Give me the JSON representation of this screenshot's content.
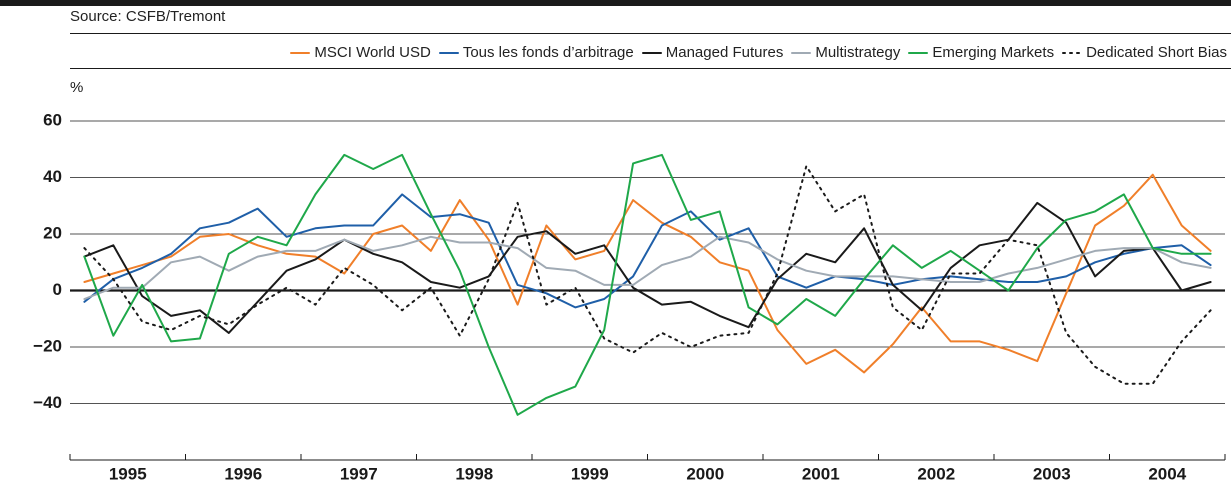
{
  "source": "Source: CSFB/Tremont",
  "chart_data": {
    "type": "line",
    "y_unit": "%",
    "categories": [
      "1995",
      "1996",
      "1997",
      "1998",
      "1999",
      "2000",
      "2001",
      "2002",
      "2003",
      "2004"
    ],
    "xlim": [
      1995,
      2005
    ],
    "xticks": [
      1995,
      1996,
      1997,
      1998,
      1999,
      2000,
      2001,
      2002,
      2003,
      2004,
      2005
    ],
    "ylim": [
      -60,
      60
    ],
    "yticks": [
      60,
      40,
      20,
      0,
      {
        "value": -20,
        "label": "−20"
      },
      {
        "value": -40,
        "label": "−40"
      }
    ],
    "grid": true,
    "x": [
      1995.125,
      1995.375,
      1995.625,
      1995.875,
      1996.125,
      1996.375,
      1996.625,
      1996.875,
      1997.125,
      1997.375,
      1997.625,
      1997.875,
      1998.125,
      1998.375,
      1998.625,
      1998.875,
      1999.125,
      1999.375,
      1999.625,
      1999.875,
      2000.125,
      2000.375,
      2000.625,
      2000.875,
      2001.125,
      2001.375,
      2001.625,
      2001.875,
      2002.125,
      2002.375,
      2002.625,
      2002.875,
      2003.125,
      2003.375,
      2003.625,
      2003.875,
      2004.125,
      2004.375,
      2004.625,
      2004.875
    ],
    "series": [
      {
        "name": "MSCI World USD",
        "color": "#f07f2a",
        "style": "solid",
        "values": [
          3,
          6,
          9,
          12,
          19,
          20,
          16,
          13,
          12,
          6,
          20,
          23,
          14,
          32,
          18,
          -5,
          23,
          11,
          14,
          32,
          24,
          19,
          10,
          7,
          -14,
          -26,
          -21,
          -29,
          -19,
          -6,
          -18,
          -18,
          -21,
          -25,
          -1,
          23,
          30,
          41,
          23,
          14
        ]
      },
      {
        "name": "Tous les fonds d’arbitrage",
        "color": "#1f5fa8",
        "style": "solid",
        "values": [
          -4,
          4,
          8,
          13,
          22,
          24,
          29,
          19,
          22,
          23,
          23,
          34,
          26,
          27,
          24,
          2,
          -1,
          -6,
          -3,
          5,
          23,
          28,
          18,
          22,
          5,
          1,
          5,
          4,
          2,
          4,
          5,
          4,
          3,
          3,
          5,
          10,
          13,
          15,
          16,
          9
        ]
      },
      {
        "name": "Managed Futures",
        "color": "#1a1a1a",
        "style": "solid",
        "values": [
          12,
          16,
          -2,
          -9,
          -7,
          -15,
          -4,
          7,
          11,
          18,
          13,
          10,
          3,
          1,
          5,
          19,
          21,
          13,
          16,
          1,
          -5,
          -4,
          -9,
          -13,
          4,
          13,
          10,
          22,
          2,
          -7,
          8,
          16,
          18,
          31,
          24,
          5,
          14,
          15,
          0,
          3
        ]
      },
      {
        "name": "Multistrategy",
        "color": "#a0aab4",
        "style": "solid",
        "values": [
          -3,
          1,
          1,
          10,
          12,
          7,
          12,
          14,
          14,
          18,
          14,
          16,
          19,
          17,
          17,
          15,
          8,
          7,
          2,
          2,
          9,
          12,
          19,
          17,
          11,
          7,
          5,
          5,
          5,
          4,
          3,
          3,
          6,
          8,
          11,
          14,
          15,
          15,
          10,
          8
        ]
      },
      {
        "name": "Emerging Markets",
        "color": "#1fa84a",
        "style": "solid",
        "values": [
          12,
          -16,
          2,
          -18,
          -17,
          13,
          19,
          16,
          34,
          48,
          43,
          48,
          27,
          7,
          -20,
          -44,
          -38,
          -34,
          -14,
          45,
          48,
          25,
          28,
          -6,
          -12,
          -3,
          -9,
          4,
          16,
          8,
          14,
          7,
          0,
          15,
          25,
          28,
          34,
          15,
          13,
          13
        ]
      },
      {
        "name": "Dedicated Short Bias",
        "color": "#1a1a1a",
        "style": "dotted",
        "values": [
          15,
          4,
          -11,
          -14,
          -9,
          -12,
          -5,
          1,
          -5,
          8,
          2,
          -7,
          1,
          -16,
          4,
          31,
          -5,
          1,
          -17,
          -22,
          -15,
          -20,
          -16,
          -15,
          6,
          44,
          28,
          34,
          -6,
          -14,
          6,
          6,
          18,
          16,
          -15,
          -27,
          -33,
          -33,
          -18,
          -7
        ]
      }
    ]
  }
}
